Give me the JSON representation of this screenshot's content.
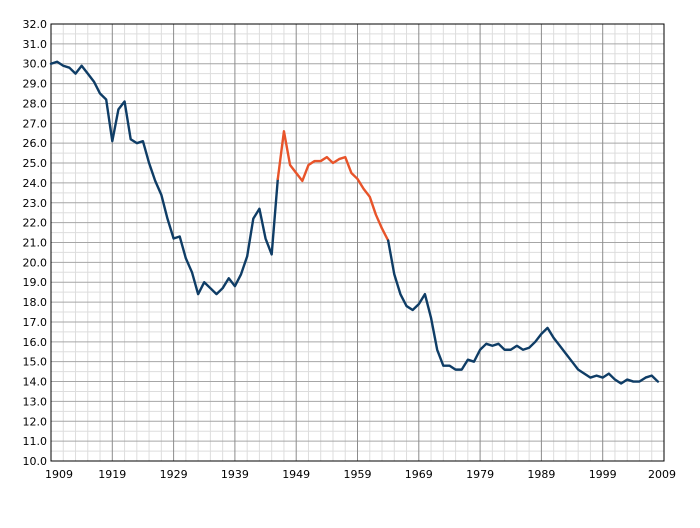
{
  "chart_data": {
    "type": "line",
    "title": "",
    "xlabel": "",
    "ylabel": "",
    "xlim": [
      1909,
      2009
    ],
    "ylim": [
      10.0,
      32.0
    ],
    "x_ticks": [
      "1909",
      "1919",
      "1929",
      "1939",
      "1949",
      "1959",
      "1969",
      "1979",
      "1989",
      "1999",
      "2009"
    ],
    "y_ticks": [
      "10.0",
      "11.0",
      "12.0",
      "13.0",
      "14.0",
      "15.0",
      "16.0",
      "17.0",
      "18.0",
      "19.0",
      "20.0",
      "21.0",
      "22.0",
      "23.0",
      "24.0",
      "25.0",
      "26.0",
      "27.0",
      "28.0",
      "29.0",
      "30.0",
      "31.0",
      "32.0"
    ],
    "grid": true,
    "series": [
      {
        "color": "#0f3d66",
        "x": [
          1909,
          1910,
          1911,
          1912,
          1913,
          1914,
          1915,
          1916,
          1917,
          1918,
          1919,
          1920,
          1921,
          1922,
          1923,
          1924,
          1925,
          1926,
          1927,
          1928,
          1929,
          1930,
          1931,
          1932,
          1933,
          1934,
          1935,
          1936,
          1937,
          1938,
          1939,
          1940,
          1941,
          1942,
          1943,
          1944,
          1945,
          1946
        ],
        "values": [
          30.0,
          30.1,
          29.9,
          29.8,
          29.5,
          29.9,
          29.5,
          29.1,
          28.5,
          28.2,
          26.1,
          27.7,
          28.1,
          26.2,
          26.0,
          26.1,
          25.0,
          24.1,
          23.4,
          22.2,
          21.2,
          21.3,
          20.2,
          19.5,
          18.4,
          19.0,
          18.7,
          18.4,
          18.7,
          19.2,
          18.8,
          19.4,
          20.3,
          22.2,
          22.7,
          21.2,
          20.4,
          24.2
        ]
      },
      {
        "color": "#e8542a",
        "x": [
          1946,
          1947,
          1948,
          1949,
          1950,
          1951,
          1952,
          1953,
          1954,
          1955,
          1956,
          1957,
          1958,
          1959,
          1960,
          1961,
          1962,
          1963,
          1964
        ],
        "values": [
          24.2,
          26.6,
          24.9,
          24.5,
          24.1,
          24.9,
          25.1,
          25.1,
          25.3,
          25.0,
          25.2,
          25.3,
          24.5,
          24.2,
          23.7,
          23.3,
          22.4,
          21.7,
          21.1
        ]
      },
      {
        "color": "#0f3d66",
        "x": [
          1964,
          1965,
          1966,
          1967,
          1968,
          1969,
          1970,
          1971,
          1972,
          1973,
          1974,
          1975,
          1976,
          1977,
          1978,
          1979,
          1980,
          1981,
          1982,
          1983,
          1984,
          1985,
          1986,
          1987,
          1988,
          1989,
          1990,
          1991,
          1992,
          1993,
          1994,
          1995,
          1996,
          1997,
          1998,
          1999,
          2000,
          2001,
          2002,
          2003,
          2004,
          2005,
          2006,
          2007,
          2008
        ],
        "values": [
          21.1,
          19.4,
          18.4,
          17.8,
          17.6,
          17.9,
          18.4,
          17.2,
          15.6,
          14.8,
          14.8,
          14.6,
          14.6,
          15.1,
          15.0,
          15.6,
          15.9,
          15.8,
          15.9,
          15.6,
          15.6,
          15.8,
          15.6,
          15.7,
          16.0,
          16.4,
          16.7,
          16.2,
          15.8,
          15.4,
          15.0,
          14.6,
          14.4,
          14.2,
          14.3,
          14.2,
          14.4,
          14.1,
          13.9,
          14.1,
          14.0,
          14.0,
          14.2,
          14.3,
          14.0
        ]
      }
    ]
  }
}
